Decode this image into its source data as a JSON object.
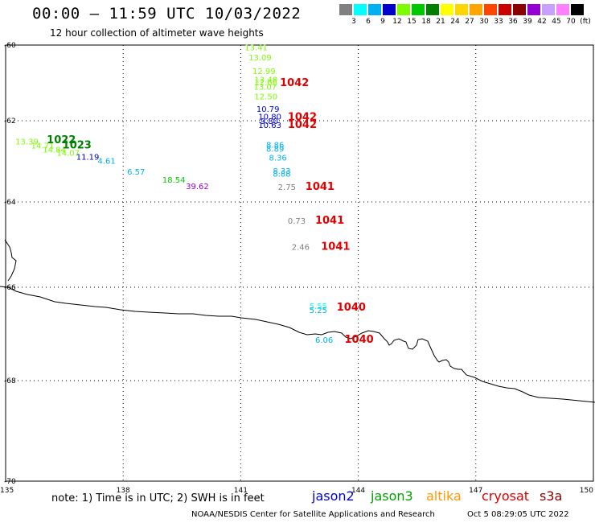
{
  "header": {
    "title": "00:00 – 11:59 UTC 10/03/2022",
    "subtitle": "12 hour collection of altimeter wave heights"
  },
  "color_scale": {
    "labels": [
      "3",
      "6",
      "9",
      "12",
      "15",
      "18",
      "21",
      "24",
      "27",
      "30",
      "33",
      "36",
      "39",
      "42",
      "45",
      "70",
      "(ft)"
    ],
    "colors": [
      "#808080",
      "#00ffff",
      "#00b0f0",
      "#0000cd",
      "#7cfc00",
      "#00c800",
      "#008000",
      "#ffff00",
      "#ffd700",
      "#ffa500",
      "#ff4500",
      "#c80000",
      "#8b0000",
      "#9400d3",
      "#c8a0ff",
      "#ff80ff",
      "#000000"
    ]
  },
  "map": {
    "lat_labels": [
      "-60",
      "-62",
      "-64",
      "-66",
      "-68",
      "-70"
    ],
    "lon_labels": [
      "135",
      "138",
      "141",
      "144",
      "147",
      "150"
    ],
    "lat_ticks": [
      -60,
      -62,
      -64,
      -66,
      -68,
      -70
    ],
    "lon_ticks": [
      135,
      138,
      141,
      144,
      147,
      150
    ],
    "coastline": [
      [
        0,
        356
      ],
      [
        10,
        357
      ],
      [
        20,
        362
      ],
      [
        34,
        366
      ],
      [
        50,
        369
      ],
      [
        68,
        375
      ],
      [
        82,
        377
      ],
      [
        100,
        379
      ],
      [
        118,
        381
      ],
      [
        132,
        382
      ],
      [
        150,
        385
      ],
      [
        168,
        387
      ],
      [
        185,
        388
      ],
      [
        205,
        389
      ],
      [
        222,
        390
      ],
      [
        240,
        390
      ],
      [
        256,
        392
      ],
      [
        272,
        393
      ],
      [
        288,
        393
      ],
      [
        300,
        395
      ],
      [
        318,
        397
      ],
      [
        332,
        400
      ],
      [
        346,
        403
      ],
      [
        360,
        407
      ],
      [
        372,
        413
      ],
      [
        382,
        416
      ],
      [
        392,
        415
      ],
      [
        400,
        416
      ],
      [
        408,
        413
      ],
      [
        416,
        412
      ],
      [
        425,
        414
      ],
      [
        430,
        419
      ],
      [
        436,
        421
      ],
      [
        443,
        418
      ],
      [
        450,
        414
      ],
      [
        458,
        411
      ],
      [
        465,
        412
      ],
      [
        472,
        414
      ],
      [
        478,
        421
      ],
      [
        482,
        425
      ],
      [
        484,
        429
      ],
      [
        487,
        427
      ],
      [
        490,
        423
      ],
      [
        496,
        421
      ],
      [
        502,
        424
      ],
      [
        505,
        425
      ],
      [
        506,
        428
      ],
      [
        508,
        433
      ],
      [
        513,
        434
      ],
      [
        518,
        429
      ],
      [
        520,
        422
      ],
      [
        525,
        421
      ],
      [
        532,
        424
      ],
      [
        535,
        431
      ],
      [
        540,
        442
      ],
      [
        544,
        448
      ],
      [
        546,
        450
      ],
      [
        550,
        448
      ],
      [
        555,
        447
      ],
      [
        558,
        450
      ],
      [
        560,
        455
      ],
      [
        565,
        458
      ],
      [
        570,
        459
      ],
      [
        574,
        459
      ],
      [
        580,
        466
      ],
      [
        590,
        469
      ],
      [
        600,
        474
      ],
      [
        610,
        477
      ],
      [
        620,
        480
      ],
      [
        630,
        482
      ],
      [
        640,
        483
      ],
      [
        650,
        487
      ],
      [
        658,
        491
      ],
      [
        670,
        494
      ],
      [
        685,
        495
      ],
      [
        700,
        496
      ],
      [
        720,
        498
      ],
      [
        740,
        500
      ]
    ],
    "coast_fragment": [
      [
        6,
        298
      ],
      [
        12,
        307
      ],
      [
        14,
        314
      ],
      [
        15,
        320
      ],
      [
        20,
        324
      ],
      [
        18,
        334
      ],
      [
        14,
        343
      ],
      [
        10,
        349
      ]
    ]
  },
  "observations": [
    {
      "text": "13.41",
      "lat": -60.05,
      "lon": 141.1,
      "color": "#7cfc00"
    },
    {
      "text": "13.09",
      "lat": -60.32,
      "lon": 141.2,
      "color": "#7cfc00"
    },
    {
      "text": "12.99",
      "lat": -60.68,
      "lon": 141.3,
      "color": "#7cfc00"
    },
    {
      "text": "13.48",
      "lat": -60.9,
      "lon": 141.35,
      "color": "#7cfc00"
    },
    {
      "text": "12.66",
      "lat": -60.98,
      "lon": 141.35,
      "color": "#7cfc00"
    },
    {
      "text": "13.07",
      "lat": -61.1,
      "lon": 141.33,
      "color": "#7cfc00"
    },
    {
      "text": "12.50",
      "lat": -61.35,
      "lon": 141.35,
      "color": "#7cfc00"
    },
    {
      "text": "1042",
      "lat": -61.0,
      "lon": 142.0,
      "color": "#e00000",
      "big": true
    },
    {
      "text": "10.79",
      "lat": -61.68,
      "lon": 141.4,
      "color": "#0000cd"
    },
    {
      "text": "10.80",
      "lat": -61.88,
      "lon": 141.45,
      "color": "#0000cd"
    },
    {
      "text": "9.80",
      "lat": -62.0,
      "lon": 141.5,
      "color": "#0000cd"
    },
    {
      "text": "10.63",
      "lat": -62.1,
      "lon": 141.45,
      "color": "#0000cd"
    },
    {
      "text": "1042",
      "lat": -61.9,
      "lon": 142.2,
      "color": "#e00000",
      "big": true
    },
    {
      "text": "1042",
      "lat": -62.1,
      "lon": 142.2,
      "color": "#e00000",
      "big": true
    },
    {
      "text": "13.39",
      "lat": -62.5,
      "lon": 135.25,
      "color": "#7cfc00"
    },
    {
      "text": "14.71",
      "lat": -62.6,
      "lon": 135.65,
      "color": "#7cfc00"
    },
    {
      "text": "14.84",
      "lat": -62.7,
      "lon": 135.95,
      "color": "#7cfc00"
    },
    {
      "text": "14.07",
      "lat": -62.78,
      "lon": 136.3,
      "color": "#7cfc00"
    },
    {
      "text": "1022",
      "lat": -62.48,
      "lon": 136.05,
      "color": "#008000",
      "big": true
    },
    {
      "text": "1023",
      "lat": -62.6,
      "lon": 136.45,
      "color": "#008000",
      "big": true
    },
    {
      "text": "11.19",
      "lat": -62.88,
      "lon": 136.8,
      "color": "#0000cd"
    },
    {
      "text": "4.61",
      "lat": -62.98,
      "lon": 137.35,
      "color": "#00b0f0"
    },
    {
      "text": "6.57",
      "lat": -63.25,
      "lon": 138.1,
      "color": "#00b0f0"
    },
    {
      "text": "18.54",
      "lat": -63.45,
      "lon": 139.0,
      "color": "#00c800"
    },
    {
      "text": "39.62",
      "lat": -63.6,
      "lon": 139.6,
      "color": "#9400d3"
    },
    {
      "text": "8.86",
      "lat": -62.58,
      "lon": 141.65,
      "color": "#00b0f0"
    },
    {
      "text": "8.89",
      "lat": -62.68,
      "lon": 141.65,
      "color": "#00b0f0"
    },
    {
      "text": "8.36",
      "lat": -62.9,
      "lon": 141.72,
      "color": "#00b0f0"
    },
    {
      "text": "8.33",
      "lat": -63.23,
      "lon": 141.82,
      "color": "#00b0f0"
    },
    {
      "text": "8.88",
      "lat": -63.3,
      "lon": 141.82,
      "color": "#00b0f0"
    },
    {
      "text": "2.75",
      "lat": -63.62,
      "lon": 141.95,
      "color": "#808080"
    },
    {
      "text": "1041",
      "lat": -63.62,
      "lon": 142.65,
      "color": "#e00000",
      "big": true
    },
    {
      "text": "0.73",
      "lat": -64.43,
      "lon": 142.2,
      "color": "#808080"
    },
    {
      "text": "1041",
      "lat": -64.43,
      "lon": 142.9,
      "color": "#e00000",
      "big": true
    },
    {
      "text": "2.46",
      "lat": -65.05,
      "lon": 142.3,
      "color": "#808080"
    },
    {
      "text": "1041",
      "lat": -65.05,
      "lon": 143.05,
      "color": "#e00000",
      "big": true
    },
    {
      "text": "5.55",
      "lat": -66.4,
      "lon": 142.75,
      "color": "#00ffff"
    },
    {
      "text": "5.25",
      "lat": -66.48,
      "lon": 142.75,
      "color": "#00b0f0"
    },
    {
      "text": "1040",
      "lat": -66.43,
      "lon": 143.45,
      "color": "#e00000",
      "big": true
    },
    {
      "text": "6.06",
      "lat": -67.12,
      "lon": 142.9,
      "color": "#00b0f0"
    },
    {
      "text": "1040",
      "lat": -67.12,
      "lon": 143.65,
      "color": "#e00000",
      "big": true
    }
  ],
  "note": "note:  1) Time is in UTC; 2) SWH is in feet",
  "legend": [
    {
      "name": "jason2",
      "color": "#0000dd"
    },
    {
      "name": "jason3",
      "color": "#00a000"
    },
    {
      "name": "altika",
      "color": "#ff9900"
    },
    {
      "name": "cryosat",
      "color": "#dd0000"
    },
    {
      "name": "s3a",
      "color": "#880000"
    }
  ],
  "credit": "NOAA/NESDIS Center for Satellite Applications and Research",
  "timestamp": "Oct  5 08:29:05 UTC 2022"
}
